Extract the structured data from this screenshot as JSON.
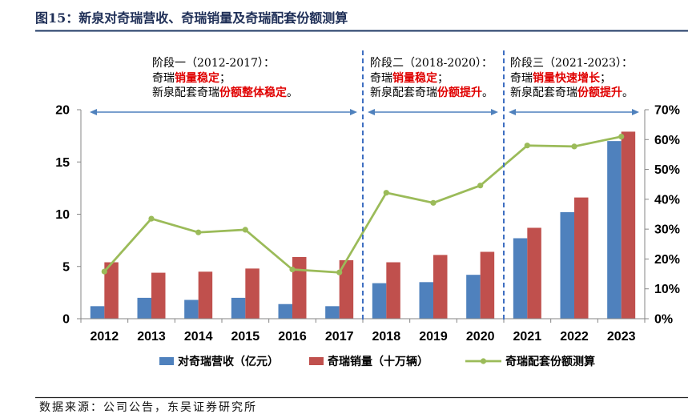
{
  "figure": {
    "title": "图15：新泉对奇瑞营收、奇瑞销量及奇瑞配套份额测算",
    "source": "数据来源：公司公告，东吴证券研究所",
    "title_color": "#1f2f57",
    "rule_color": "#1f3864"
  },
  "chart_data": {
    "type": "bar",
    "categories": [
      "2012",
      "2013",
      "2014",
      "2015",
      "2016",
      "2017",
      "2018",
      "2019",
      "2020",
      "2021",
      "2022",
      "2023"
    ],
    "series": [
      {
        "name": "对奇瑞营收（亿元）",
        "type": "bar",
        "y_axis": "left",
        "color": "#4f81bd",
        "values": [
          1.2,
          2.0,
          1.8,
          2.0,
          1.4,
          1.2,
          3.4,
          3.5,
          4.2,
          7.7,
          10.2,
          17.0
        ]
      },
      {
        "name": "奇瑞销量（十万辆）",
        "type": "bar",
        "y_axis": "left",
        "color": "#c0504d",
        "values": [
          5.4,
          4.4,
          4.5,
          4.8,
          5.9,
          5.6,
          5.4,
          6.1,
          6.4,
          8.7,
          11.6,
          17.9
        ]
      },
      {
        "name": "奇瑞配套份额测算",
        "type": "line",
        "y_axis": "right",
        "color": "#9bbb59",
        "values": [
          15.8,
          33.5,
          28.9,
          29.8,
          16.5,
          15.5,
          42.2,
          38.8,
          44.6,
          58.0,
          57.7,
          61.0
        ]
      }
    ],
    "y_left": {
      "min": 0,
      "max": 20,
      "ticks": [
        0,
        5,
        10,
        15,
        20
      ],
      "labels": [
        "0",
        "5",
        "10",
        "15",
        "20"
      ]
    },
    "y_right": {
      "min": 0,
      "max": 70,
      "ticks": [
        0,
        10,
        20,
        30,
        40,
        50,
        60,
        70
      ],
      "labels": [
        "0%",
        "10%",
        "20%",
        "30%",
        "40%",
        "50%",
        "60%",
        "70%"
      ]
    },
    "grid": false,
    "legend_position": "bottom",
    "annotation_style": {
      "heading_color": "#e00000",
      "emphasis_color": "#e00000",
      "arrow_color": "#4f81bd",
      "divider_color": "#3f6fc2"
    },
    "annotations": [
      {
        "range": [
          "2012",
          "2017"
        ],
        "heading": "阶段一（2012-2017）：",
        "lines": [
          [
            {
              "text": "奇瑞",
              "emphasis": false
            },
            {
              "text": "销量稳定",
              "emphasis": true
            },
            {
              "text": "；",
              "emphasis": false
            }
          ],
          [
            {
              "text": "新泉配套奇瑞",
              "emphasis": false
            },
            {
              "text": "份额整体稳定",
              "emphasis": true
            },
            {
              "text": "。",
              "emphasis": false
            }
          ]
        ]
      },
      {
        "range": [
          "2018",
          "2020"
        ],
        "heading": "阶段二（2018-2020）：",
        "lines": [
          [
            {
              "text": "奇瑞",
              "emphasis": false
            },
            {
              "text": "销量稳定",
              "emphasis": true
            },
            {
              "text": "；",
              "emphasis": false
            }
          ],
          [
            {
              "text": "新泉配套奇瑞",
              "emphasis": false
            },
            {
              "text": "份额提升",
              "emphasis": true
            },
            {
              "text": "。",
              "emphasis": false
            }
          ]
        ]
      },
      {
        "range": [
          "2021",
          "2023"
        ],
        "heading": "阶段三（2021-2023）：",
        "lines": [
          [
            {
              "text": "奇瑞",
              "emphasis": false
            },
            {
              "text": "销量快速增长",
              "emphasis": true
            },
            {
              "text": "；",
              "emphasis": false
            }
          ],
          [
            {
              "text": "新泉配套奇瑞",
              "emphasis": false
            },
            {
              "text": "份额提升",
              "emphasis": true
            },
            {
              "text": "。",
              "emphasis": false
            }
          ]
        ]
      }
    ]
  }
}
